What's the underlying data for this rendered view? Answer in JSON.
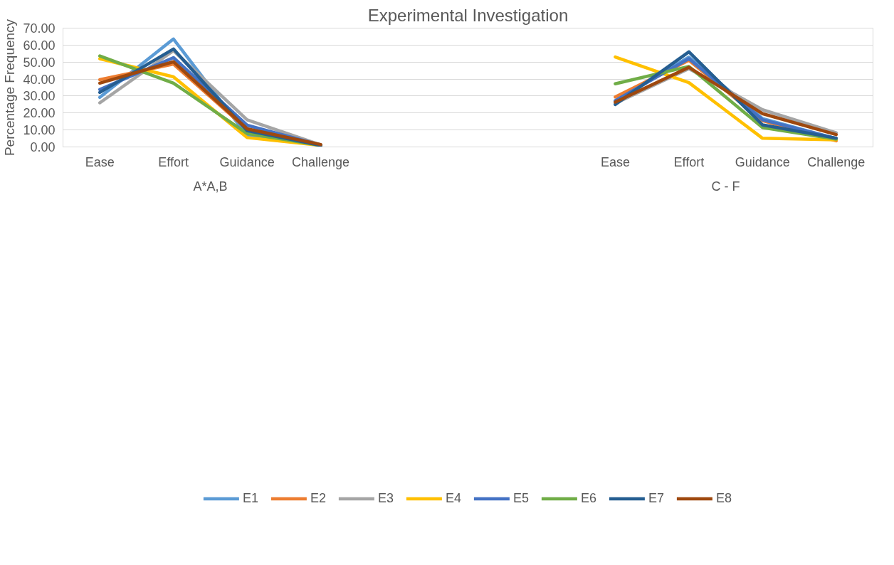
{
  "chart_data": {
    "type": "line",
    "title": "Experimental Investigation",
    "ylabel": "Percentage Frequency",
    "categories": [
      "Ease",
      "Effort",
      "Guidance",
      "Challenge",
      null,
      null,
      null,
      "Ease",
      "Effort",
      "Guidance",
      "Challenge"
    ],
    "annotations": [
      "A*A,B",
      "C - F"
    ],
    "ylim": [
      0,
      70
    ],
    "yticks": [
      {
        "value": 0,
        "label": "0.00"
      },
      {
        "value": 10,
        "label": "10.00"
      },
      {
        "value": 20,
        "label": "20.00"
      },
      {
        "value": 30,
        "label": "30.00"
      },
      {
        "value": 40,
        "label": "40.00"
      },
      {
        "value": 50,
        "label": "50.00"
      },
      {
        "value": 60,
        "label": "60.00"
      },
      {
        "value": 70,
        "label": "70.00"
      }
    ],
    "grid": "y",
    "legend": "bottom",
    "marker": "none",
    "line_style": "solid",
    "series": [
      {
        "name": "E1",
        "color": "#5b9bd5",
        "values": [
          29.2,
          63.6,
          6.8,
          1.0,
          null,
          null,
          null,
          27.0,
          52.9,
          16.7,
          4.9
        ]
      },
      {
        "name": "E2",
        "color": "#ed7d31",
        "values": [
          39.6,
          48.8,
          10.3,
          1.3,
          null,
          null,
          null,
          29.4,
          51.0,
          15.5,
          3.6
        ]
      },
      {
        "name": "E3",
        "color": "#a5a5a5",
        "values": [
          26.0,
          56.7,
          16.0,
          1.2,
          null,
          null,
          null,
          25.7,
          46.1,
          21.9,
          8.3
        ]
      },
      {
        "name": "E4",
        "color": "#ffc000",
        "values": [
          52.0,
          41.3,
          5.5,
          0.9,
          null,
          null,
          null,
          53.0,
          37.9,
          5.1,
          4.2
        ]
      },
      {
        "name": "E5",
        "color": "#4472c4",
        "values": [
          33.8,
          52.6,
          12.8,
          1.1,
          null,
          null,
          null,
          27.3,
          52.0,
          16.0,
          5.0
        ]
      },
      {
        "name": "E6",
        "color": "#70ad47",
        "values": [
          53.6,
          37.6,
          7.9,
          0.9,
          null,
          null,
          null,
          37.2,
          47.4,
          11.4,
          4.6
        ]
      },
      {
        "name": "E7",
        "color": "#255e91",
        "values": [
          32.1,
          57.7,
          9.6,
          0.9,
          null,
          null,
          null,
          25.0,
          56.0,
          13.0,
          5.2
        ]
      },
      {
        "name": "E8",
        "color": "#9e480e",
        "values": [
          37.6,
          50.2,
          10.7,
          1.4,
          null,
          null,
          null,
          26.4,
          46.9,
          19.6,
          7.3
        ]
      }
    ]
  }
}
